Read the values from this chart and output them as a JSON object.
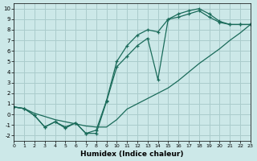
{
  "bg_color": "#cce8e8",
  "grid_color": "#aacccc",
  "line_color": "#1a6b5a",
  "xlim": [
    0,
    23
  ],
  "ylim": [
    -2.5,
    10.5
  ],
  "xticks": [
    0,
    1,
    2,
    3,
    4,
    5,
    6,
    7,
    8,
    9,
    10,
    11,
    12,
    13,
    14,
    15,
    16,
    17,
    18,
    19,
    20,
    21,
    22,
    23
  ],
  "yticks": [
    -2,
    -1,
    0,
    1,
    2,
    3,
    4,
    5,
    6,
    7,
    8,
    9,
    10
  ],
  "xlabel": "Humidex (Indice chaleur)",
  "line1_x": [
    0,
    1,
    2,
    3,
    4,
    5,
    6,
    7,
    8,
    9,
    10,
    11,
    12,
    13,
    14,
    15,
    16,
    17,
    18,
    19,
    20,
    21,
    22,
    23
  ],
  "line1_y": [
    0.7,
    0.55,
    0.1,
    -0.2,
    -0.5,
    -0.7,
    -0.9,
    -1.1,
    -1.2,
    -1.2,
    -0.5,
    0.5,
    1.0,
    1.5,
    2.0,
    2.5,
    3.2,
    4.0,
    4.8,
    5.5,
    6.2,
    7.0,
    7.7,
    8.5
  ],
  "line2_x": [
    0,
    1,
    2,
    3,
    4,
    5,
    6,
    7,
    8,
    9,
    10,
    11,
    12,
    13,
    14,
    15,
    16,
    17,
    18,
    19,
    20,
    21,
    22,
    23
  ],
  "line2_y": [
    0.7,
    0.55,
    -0.1,
    -1.2,
    -0.7,
    -1.2,
    -0.8,
    -1.8,
    -1.8,
    1.2,
    4.5,
    5.5,
    6.5,
    7.2,
    3.3,
    9.0,
    9.2,
    9.5,
    9.8,
    9.2,
    8.7,
    8.5,
    8.5,
    8.5
  ],
  "line3_x": [
    0,
    1,
    2,
    3,
    4,
    5,
    6,
    7,
    8,
    9,
    10,
    11,
    12,
    13,
    14,
    15,
    16,
    17,
    18,
    19,
    20,
    21,
    22,
    23
  ],
  "line3_y": [
    0.7,
    0.55,
    -0.1,
    -1.2,
    -0.7,
    -1.3,
    -0.8,
    -1.8,
    -1.5,
    1.3,
    5.0,
    6.5,
    7.5,
    8.0,
    7.8,
    9.0,
    9.5,
    9.8,
    10.0,
    9.5,
    8.8,
    8.5,
    8.5,
    8.5
  ]
}
